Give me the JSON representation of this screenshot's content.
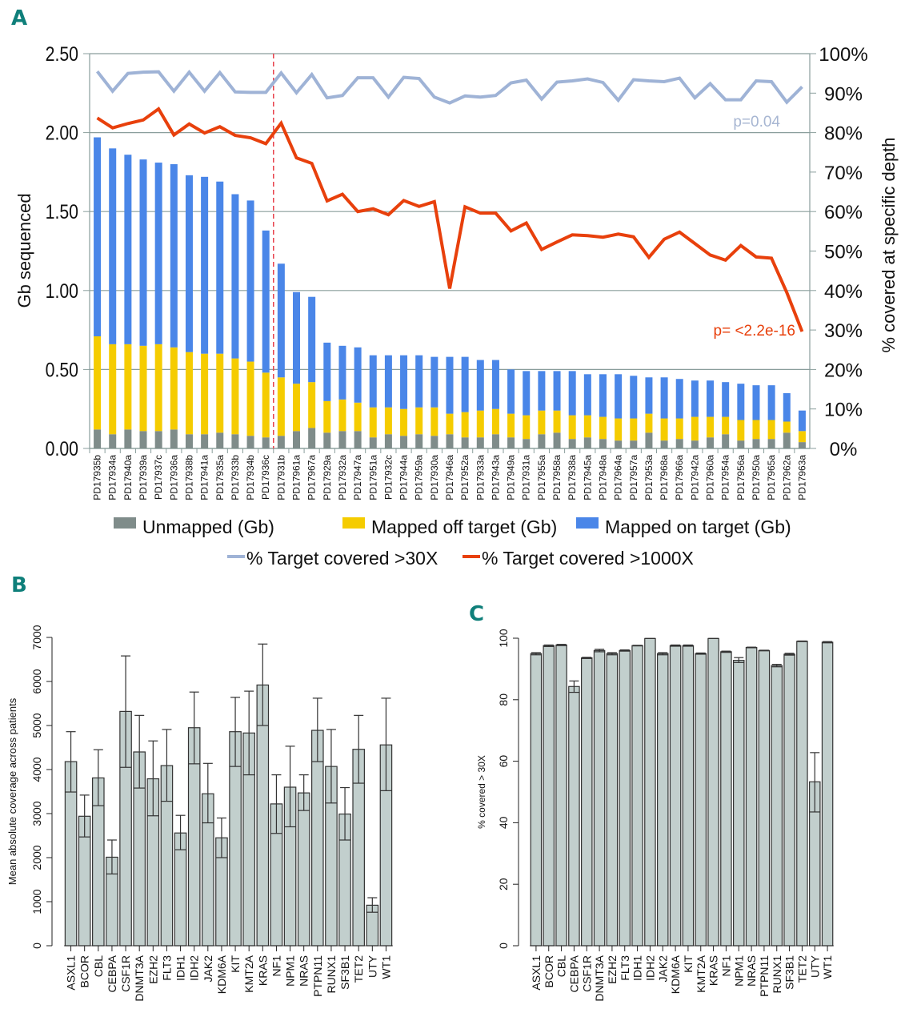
{
  "panels": {
    "a_label": "A",
    "b_label": "B",
    "c_label": "C"
  },
  "chart_data": [
    {
      "id": "A",
      "type": "bar",
      "subtype": "stacked bar with dual-axis line overlay",
      "title": "",
      "ylabel": "Gb sequenced",
      "y2label": "% covered at specific depth",
      "ylim": [
        0,
        2.5
      ],
      "yticks": [
        "0.00",
        "0.50",
        "1.00",
        "1.50",
        "2.00",
        "2.50"
      ],
      "y2lim": [
        0,
        100
      ],
      "y2ticks": [
        "0%",
        "10%",
        "20%",
        "30%",
        "40%",
        "50%",
        "60%",
        "70%",
        "80%",
        "90%",
        "100%"
      ],
      "grid": true,
      "divider_after_index": 11,
      "categories": [
        "PD17935b",
        "PD17934a",
        "PD17940a",
        "PD17939a",
        "PD17937c",
        "PD17936a",
        "PD17938b",
        "PD17941a",
        "PD17935a",
        "PD17933b",
        "PD17934b",
        "PD17936c",
        "PD17931b",
        "PD17961a",
        "PD17967a",
        "PD17929a",
        "PD17932a",
        "PD17947a",
        "PD17951a",
        "PD17932c",
        "PD17944a",
        "PD17959a",
        "PD17930a",
        "PD17946a",
        "PD17952a",
        "PD17933a",
        "PD17943a",
        "PD17949a",
        "PD17931a",
        "PD17955a",
        "PD17958a",
        "PD17938a",
        "PD17945a",
        "PD17948a",
        "PD17964a",
        "PD17957a",
        "PD17953a",
        "PD17968a",
        "PD17966a",
        "PD17942a",
        "PD17960a",
        "PD17954a",
        "PD17956a",
        "PD17950a",
        "PD17965a",
        "PD17962a",
        "PD17963a"
      ],
      "series": [
        {
          "name": "Unmapped (Gb)",
          "kind": "bar",
          "color": "#7f8c8a",
          "values": [
            0.12,
            0.09,
            0.12,
            0.11,
            0.11,
            0.12,
            0.09,
            0.09,
            0.1,
            0.09,
            0.08,
            0.07,
            0.08,
            0.11,
            0.13,
            0.1,
            0.11,
            0.11,
            0.07,
            0.09,
            0.08,
            0.09,
            0.08,
            0.09,
            0.07,
            0.07,
            0.09,
            0.07,
            0.06,
            0.09,
            0.1,
            0.06,
            0.07,
            0.06,
            0.05,
            0.05,
            0.1,
            0.05,
            0.06,
            0.05,
            0.07,
            0.09,
            0.05,
            0.06,
            0.06,
            0.1,
            0.04
          ]
        },
        {
          "name": "Mapped off target (Gb)",
          "kind": "bar",
          "color": "#f5cc00",
          "values": [
            0.59,
            0.57,
            0.54,
            0.54,
            0.55,
            0.52,
            0.52,
            0.51,
            0.5,
            0.48,
            0.47,
            0.41,
            0.37,
            0.3,
            0.29,
            0.2,
            0.2,
            0.18,
            0.19,
            0.17,
            0.17,
            0.17,
            0.18,
            0.13,
            0.16,
            0.17,
            0.16,
            0.15,
            0.15,
            0.15,
            0.14,
            0.15,
            0.14,
            0.14,
            0.14,
            0.14,
            0.12,
            0.14,
            0.13,
            0.15,
            0.13,
            0.11,
            0.13,
            0.12,
            0.12,
            0.07,
            0.07
          ]
        },
        {
          "name": "Mapped on target (Gb)",
          "kind": "bar",
          "color": "#4a86e8",
          "values": [
            1.26,
            1.24,
            1.2,
            1.18,
            1.15,
            1.16,
            1.12,
            1.12,
            1.09,
            1.04,
            1.02,
            0.9,
            0.72,
            0.58,
            0.54,
            0.37,
            0.34,
            0.35,
            0.33,
            0.33,
            0.34,
            0.33,
            0.32,
            0.36,
            0.35,
            0.32,
            0.31,
            0.28,
            0.28,
            0.25,
            0.25,
            0.28,
            0.26,
            0.27,
            0.28,
            0.27,
            0.23,
            0.26,
            0.25,
            0.23,
            0.23,
            0.22,
            0.23,
            0.22,
            0.22,
            0.18,
            0.13
          ]
        },
        {
          "name": "% Target covered >30X",
          "kind": "line",
          "axis": "right",
          "color": "#9fb3d6",
          "values": [
            95.5,
            90.5,
            95,
            95.3,
            95.4,
            90.5,
            95.3,
            90.5,
            95.2,
            90.3,
            90.2,
            90.2,
            95.1,
            90.1,
            94.7,
            88.8,
            89.4,
            93.9,
            93.9,
            89,
            94,
            93.7,
            89,
            87.5,
            89.3,
            89,
            89.4,
            92.6,
            93.3,
            88.5,
            92.8,
            93.1,
            93.6,
            92.7,
            88.2,
            93.4,
            93.1,
            92.9,
            93.8,
            88.8,
            92.4,
            88.3,
            88.3,
            93.1,
            92.9,
            87.7,
            91.6
          ]
        },
        {
          "name": "% Target covered >1000X",
          "kind": "line",
          "axis": "right",
          "color": "#e8400c",
          "values": [
            83.7,
            81.2,
            82.3,
            83.2,
            86,
            79.4,
            82.2,
            79.9,
            81.5,
            79.3,
            78.7,
            77.2,
            82.4,
            73.6,
            72.2,
            62.7,
            64.4,
            60,
            60.7,
            59.2,
            62.8,
            61.3,
            62.5,
            40.5,
            61.2,
            59.6,
            59.6,
            55.1,
            57.1,
            50.4,
            52.3,
            54.1,
            53.9,
            53.5,
            54.3,
            53.6,
            48.4,
            53,
            54.8,
            51.9,
            49,
            47.7,
            51.4,
            48.5,
            48.2,
            39.5,
            29.6
          ]
        }
      ],
      "annotations": [
        {
          "text": "p=0.04",
          "series": "% Target covered >30X"
        },
        {
          "text": "p= <2.2e-16",
          "series": "% Target covered >1000X"
        }
      ],
      "legend": {
        "placement": "bottom",
        "entries": [
          "Unmapped (Gb)",
          "Mapped off target (Gb)",
          "Mapped on target (Gb)",
          "% Target covered >30X",
          "% Target covered >1000X"
        ]
      }
    },
    {
      "id": "B",
      "type": "bar",
      "subtype": "bar with error bars",
      "title": "",
      "xlabel": "",
      "ylabel": "Mean absolute coverage across patients",
      "ylim": [
        0,
        7000
      ],
      "yticks": [
        "0",
        "1000",
        "2000",
        "3000",
        "4000",
        "5000",
        "6000",
        "7000"
      ],
      "categories": [
        "ASXL1",
        "BCOR",
        "CBL",
        "CEBPA",
        "CSF1R",
        "DNMT3A",
        "EZH2",
        "FLT3",
        "IDH1",
        "IDH2",
        "JAK2",
        "KDM6A",
        "KIT",
        "KMT2A",
        "KRAS",
        "NF1",
        "NPM1",
        "NRAS",
        "PTPN11",
        "RUNX1",
        "SF3B1",
        "TET2",
        "UTY",
        "WT1"
      ],
      "tick_labels_visible": [
        "ASXL1",
        "BCOR",
        "CBL",
        "CEBPA",
        "CSF1R",
        "DNMT3A",
        "EZH2",
        "FLT3",
        "IDH1",
        "IDH2",
        "JAK2",
        "KDM6A",
        "KIT",
        "KMT2A",
        "KRAS",
        "NF1",
        "NPM1",
        "NRAS",
        "PTPN11",
        "RUNX1",
        "SF3B1",
        "TET2",
        "UTY",
        "WT1"
      ],
      "values": [
        4180,
        2940,
        3810,
        2010,
        5320,
        4400,
        3790,
        4090,
        2560,
        4950,
        3450,
        2450,
        4860,
        4830,
        5920,
        3220,
        3600,
        3470,
        4890,
        4070,
        2990,
        4460,
        920,
        4560
      ],
      "error_low": [
        3490,
        2470,
        3180,
        1630,
        4050,
        3580,
        2950,
        3280,
        2180,
        4130,
        2790,
        2000,
        4070,
        3880,
        5000,
        2550,
        2700,
        3070,
        4180,
        3240,
        2400,
        3690,
        760,
        3520
      ],
      "error_high": [
        4860,
        3420,
        4450,
        2400,
        6580,
        5230,
        4650,
        4910,
        2960,
        5760,
        4140,
        2900,
        5640,
        5780,
        6850,
        3880,
        4530,
        3880,
        5620,
        4910,
        3590,
        5230,
        1090,
        5620
      ],
      "bar_color": "#c2cfcd"
    },
    {
      "id": "C",
      "type": "bar",
      "subtype": "bar with error bars",
      "title": "",
      "xlabel": "",
      "ylabel": "% covered > 30X",
      "ylim": [
        0,
        100
      ],
      "yticks": [
        "0",
        "20",
        "40",
        "60",
        "80",
        "100"
      ],
      "categories": [
        "ASXL1",
        "BCOR",
        "CBL",
        "CEBPA",
        "CSF1R",
        "DNMT3A",
        "EZH2",
        "FLT3",
        "IDH1",
        "IDH2",
        "JAK2",
        "KDM6A",
        "KIT",
        "KMT2A",
        "KRAS",
        "NF1",
        "NPM1",
        "NRAS",
        "PTPN11",
        "RUNX1",
        "SF3B1",
        "TET2",
        "UTY",
        "WT1"
      ],
      "values": [
        95,
        97.6,
        97.8,
        84.3,
        93.6,
        96,
        95,
        96,
        97.6,
        99.9,
        95,
        97.6,
        97.6,
        95,
        99.9,
        95.6,
        92.8,
        97,
        96,
        91.1,
        94.8,
        99,
        53.3,
        98.7
      ],
      "error_low": [
        94.6,
        97.3,
        97.6,
        82.4,
        93.4,
        95.6,
        94.6,
        95.8,
        97.5,
        99.9,
        94.6,
        97.4,
        97.4,
        94.8,
        99.9,
        95.4,
        92.1,
        96.9,
        95.9,
        90.7,
        94.5,
        98.9,
        43.5,
        98.5
      ],
      "error_high": [
        95.3,
        97.8,
        98,
        86.1,
        93.8,
        96.4,
        95.3,
        96.2,
        97.7,
        99.9,
        95.3,
        97.8,
        97.8,
        95.2,
        99.9,
        95.8,
        93.7,
        97.1,
        96.1,
        91.5,
        95.1,
        99.1,
        62.8,
        98.9
      ],
      "bar_color": "#c2cfcd"
    }
  ]
}
